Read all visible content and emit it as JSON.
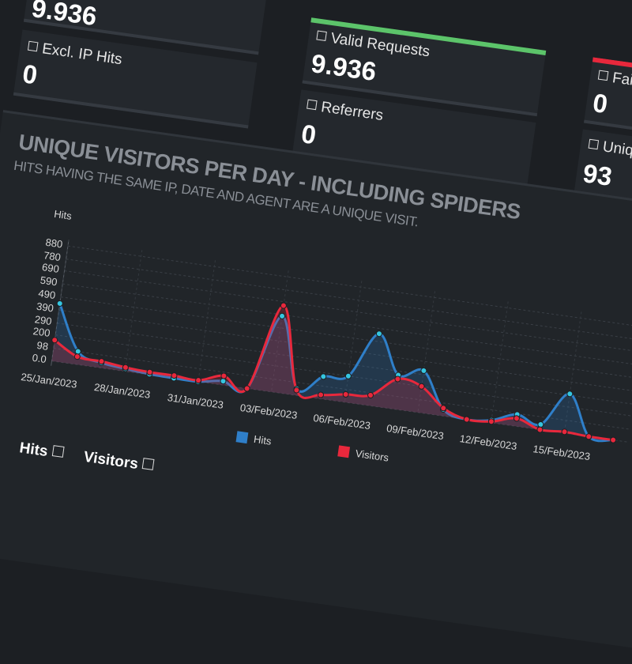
{
  "cards": [
    {
      "value": "9.936"
    },
    {
      "label": "Excl. IP Hits",
      "value": "0"
    },
    {
      "label": "Valid Requests",
      "value": "9.936"
    },
    {
      "label": "Referrers",
      "value": "0"
    },
    {
      "label": "Failed",
      "value": "0"
    },
    {
      "label": "Unique",
      "value": "93"
    }
  ],
  "chart_data": {
    "type": "line",
    "title": "UNIQUE VISITORS PER DAY - INCLUDING SPIDERS",
    "subtitle": "HITS HAVING THE SAME IP, DATE AND AGENT ARE A UNIQUE VISIT.",
    "y_label": "Hits",
    "categories": [
      "25/Jan/2023",
      null,
      null,
      "28/Jan/2023",
      null,
      null,
      "31/Jan/2023",
      null,
      null,
      "03/Feb/2023",
      null,
      null,
      "06/Feb/2023",
      null,
      null,
      "09/Feb/2023",
      null,
      null,
      "12/Feb/2023",
      null,
      null,
      "15/Feb/2023",
      null,
      null
    ],
    "series": [
      {
        "name": "Hits",
        "color": "#2f7fc9",
        "marker_color": "#35c6e0",
        "values": [
          440,
          100,
          40,
          20,
          5,
          0,
          0,
          30,
          0,
          580,
          50,
          170,
          200,
          550,
          260,
          320,
          50,
          0,
          20,
          90,
          40,
          300,
          0,
          0
        ]
      },
      {
        "name": "Visitors",
        "color": "#e8283c",
        "marker_color": "#e8283c",
        "values": [
          160,
          60,
          50,
          30,
          20,
          20,
          10,
          70,
          0,
          660,
          40,
          30,
          60,
          80,
          230,
          200,
          60,
          0,
          10,
          60,
          0,
          10,
          0,
          0
        ]
      }
    ],
    "ylim": [
      0,
      880
    ],
    "yticks": [
      {
        "value": 0,
        "label": "0.0"
      },
      98,
      200,
      290,
      390,
      490,
      590,
      690,
      780,
      880
    ],
    "grid": true
  },
  "tabs": [
    "Hits",
    "Visitors"
  ]
}
